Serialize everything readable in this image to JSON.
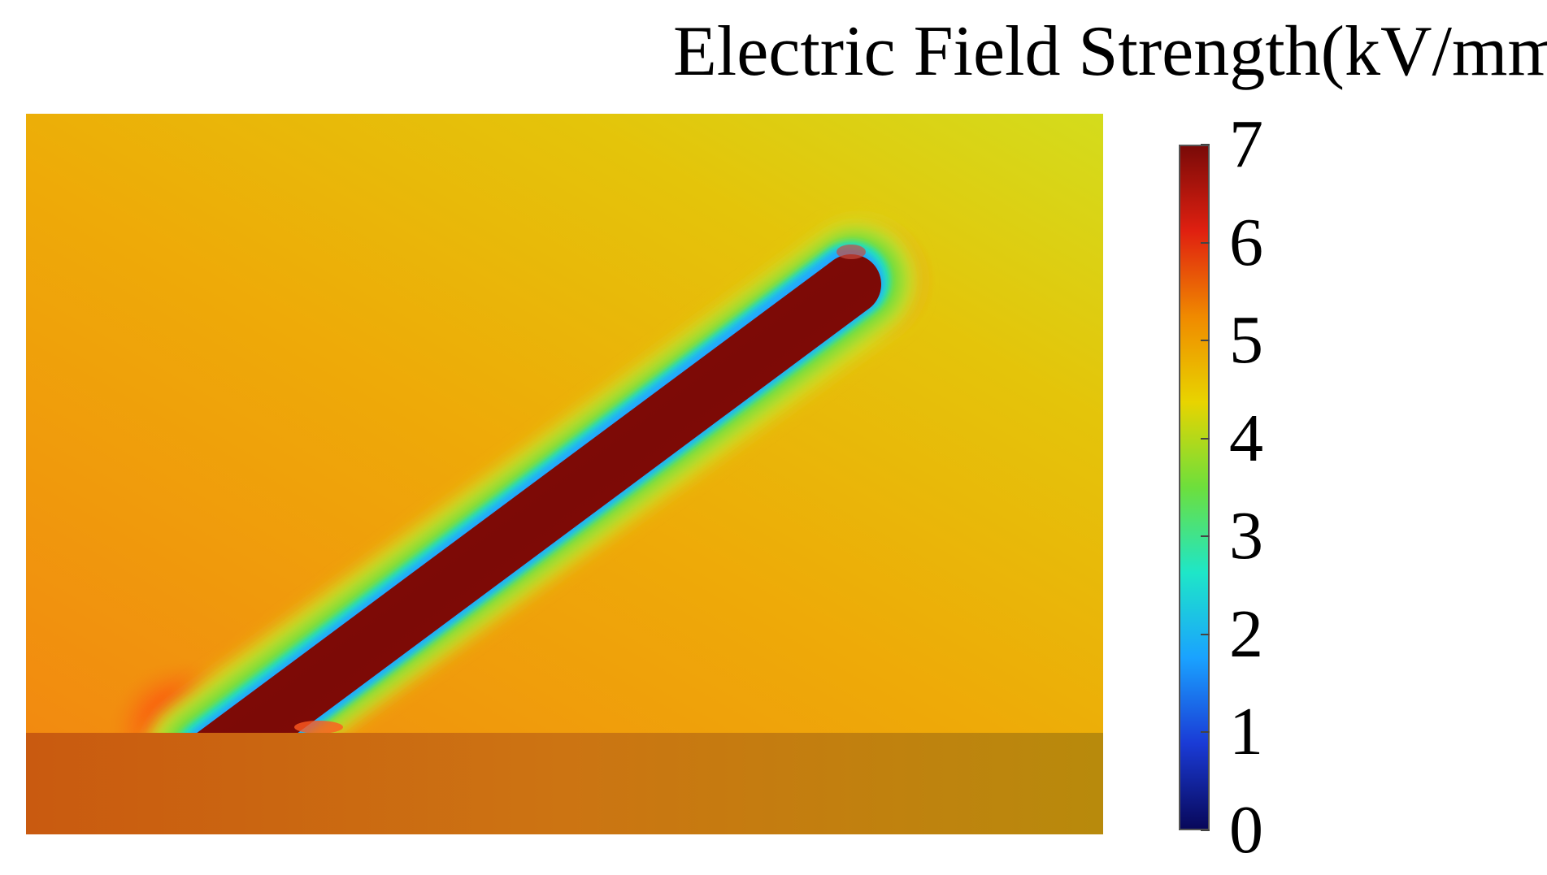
{
  "title": "Electric Field Strength(kV/mm)",
  "colorbar": {
    "min": 0,
    "max": 7,
    "ticks": [
      "0",
      "1",
      "2",
      "3",
      "4",
      "5",
      "6",
      "7"
    ],
    "colors": [
      "#08085a",
      "#1a3bd6",
      "#1aa2ff",
      "#1ee6c8",
      "#6ddf3c",
      "#e8d400",
      "#f08a00",
      "#e02010",
      "#7a0a08"
    ]
  },
  "field_plot": {
    "background_colors": {
      "upper_left": "#f29010",
      "upper_right": "#d8dc1a",
      "ground": "#c96a10"
    },
    "rod_color": "#8a0f08"
  }
}
